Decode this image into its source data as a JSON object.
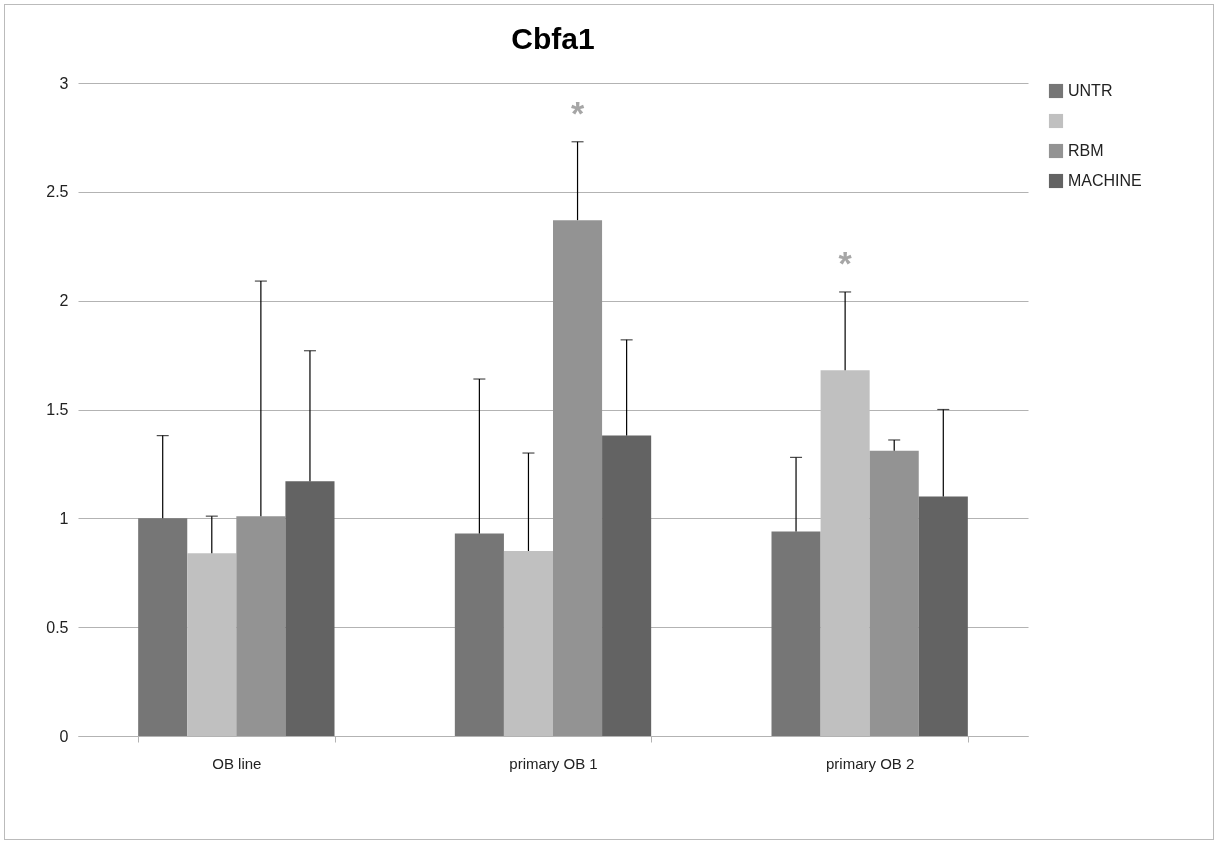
{
  "chart_data": {
    "type": "bar",
    "title": "Cbfa1",
    "categories": [
      "OB line",
      "primary OB 1",
      "primary OB 2"
    ],
    "series": [
      {
        "name": "UNTR",
        "color": "#767676",
        "values": [
          1.0,
          0.93,
          0.94
        ],
        "errors": [
          [
            1.0,
            1.38
          ],
          [
            0.93,
            1.64
          ],
          [
            0.94,
            1.28
          ]
        ]
      },
      {
        "color": "#c0c0c0",
        "values": [
          0.84,
          0.85,
          1.68
        ],
        "errors": [
          [
            0.84,
            1.01
          ],
          [
            0.85,
            1.3
          ],
          [
            1.68,
            2.04
          ]
        ]
      },
      {
        "name": "RBM",
        "color": "#939393",
        "values": [
          1.01,
          2.37,
          1.31
        ],
        "errors": [
          [
            1.01,
            2.09
          ],
          [
            2.37,
            2.73
          ],
          [
            1.31,
            1.36
          ]
        ]
      },
      {
        "name": "MACHINE",
        "color": "#636363",
        "values": [
          1.17,
          1.38,
          1.1
        ],
        "errors": [
          [
            1.17,
            1.77
          ],
          [
            1.38,
            1.82
          ],
          [
            1.1,
            1.5
          ]
        ]
      }
    ],
    "annotations": [
      "*",
      "*"
    ],
    "ylim": [
      0,
      3
    ],
    "yticks": [
      0,
      0.5,
      1,
      1.5,
      2,
      2.5,
      3
    ],
    "grid": "y",
    "legend": "right"
  }
}
